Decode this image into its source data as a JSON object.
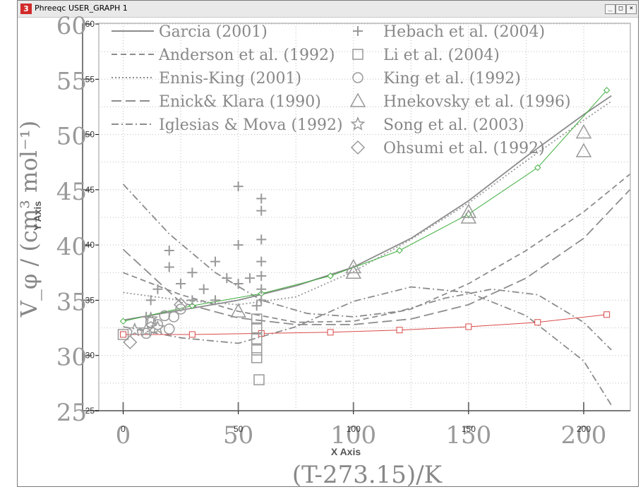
{
  "window": {
    "title": "Phreeqc USER_GRAPH 1",
    "icon_label": "3",
    "buttons": {
      "minimize": "_",
      "maximize": "□",
      "close": "×"
    }
  },
  "chart_data": {
    "type": "line",
    "grid": true,
    "legend_placement": "top-left",
    "title": "",
    "xlabel": "(T-273.15)/K",
    "ylabel": "V_φ / (cm³ mol⁻¹)",
    "widget_xlabel": "X Axis",
    "widget_ylabel": "Y Axis",
    "xlim": [
      -10,
      220
    ],
    "ylim": [
      25,
      60
    ],
    "x_ticks": [
      0,
      50,
      100,
      150,
      200
    ],
    "y_ticks": [
      25,
      30,
      35,
      40,
      45,
      50,
      55,
      60
    ],
    "x_tick_labels": [
      "0",
      "50",
      "100",
      "150",
      "200"
    ],
    "y_tick_labels": [
      "25",
      "30",
      "35",
      "40",
      "45",
      "50",
      "55",
      "60"
    ],
    "legend_lines": [
      {
        "label": "Garcia (2001)",
        "style": "solid"
      },
      {
        "label": "Anderson et al. (1992)",
        "style": "dashed"
      },
      {
        "label": "Ennis-King (2001)",
        "style": "dotted"
      },
      {
        "label": "Enick& Klara (1990)",
        "style": "long-dash"
      },
      {
        "label": "Iglesias & Mova (1992)",
        "style": "dash-dot"
      }
    ],
    "legend_markers": [
      {
        "label": "Hebach et al. (2004)",
        "marker": "+"
      },
      {
        "label": "Li et al. (2004)",
        "marker": "□"
      },
      {
        "label": "King et al. (1992)",
        "marker": "○"
      },
      {
        "label": "Hnekovsky et al. (1996)",
        "marker": "△"
      },
      {
        "label": "Song et al. (2003)",
        "marker": "☆"
      },
      {
        "label": "Ohsumi et al. (1992)",
        "marker": "◇"
      }
    ],
    "series": [
      {
        "name": "Garcia (2001)",
        "style": "solid",
        "color": "#8c8c8c",
        "x": [
          0,
          25,
          50,
          75,
          100,
          125,
          150,
          175,
          200,
          212
        ],
        "y": [
          33.2,
          34.1,
          35.0,
          36.3,
          38.0,
          40.6,
          44.0,
          48.0,
          51.8,
          53.5
        ]
      },
      {
        "name": "Anderson et al. (1992)",
        "style": "dashed",
        "color": "#8c8c8c",
        "x": [
          0,
          25,
          50,
          75,
          100,
          125,
          150,
          175,
          200,
          220
        ],
        "y": [
          37.5,
          35.5,
          34.0,
          33.0,
          33.1,
          34.2,
          36.5,
          39.5,
          43.0,
          46.4
        ]
      },
      {
        "name": "Ennis-King (2001)",
        "style": "dotted",
        "color": "#9a9a9a",
        "x": [
          0,
          25,
          50,
          75,
          100,
          125,
          150,
          175,
          200,
          212
        ],
        "y": [
          35.7,
          35.0,
          34.6,
          35.3,
          37.6,
          40.5,
          43.8,
          47.6,
          51.3,
          53.0
        ]
      },
      {
        "name": "Enick& Klara (1990)",
        "style": "long-dash",
        "color": "#8c8c8c",
        "x": [
          0,
          25,
          50,
          75,
          100,
          125,
          150,
          175,
          200,
          220
        ],
        "y": [
          39.6,
          34.8,
          33.4,
          32.8,
          32.8,
          33.3,
          34.6,
          37.0,
          40.6,
          45.0
        ]
      },
      {
        "name": "Iglesias & Mova (1992)",
        "style": "dash-dot",
        "color": "#8c8c8c",
        "x": [
          0,
          20,
          40,
          60,
          80,
          100,
          120,
          140,
          160,
          180,
          200,
          212
        ],
        "y": [
          45.5,
          41.0,
          37.5,
          35.0,
          33.8,
          33.5,
          34.0,
          35.2,
          36.0,
          35.5,
          33.0,
          30.5
        ]
      },
      {
        "name": "",
        "style": "dash-dot",
        "color": "#8c8c8c",
        "x": [
          0,
          25,
          50,
          75,
          100,
          125,
          150,
          175,
          200,
          212
        ],
        "y": [
          32.6,
          31.6,
          31.1,
          32.6,
          34.9,
          36.2,
          35.7,
          33.6,
          29.5,
          25.5
        ]
      },
      {
        "name": "",
        "style": "solid-markers",
        "color": "#3fae3f",
        "marker": "diamond",
        "x": [
          0,
          30,
          60,
          90,
          120,
          150,
          180,
          210
        ],
        "y": [
          33.1,
          34.5,
          35.6,
          37.2,
          39.5,
          42.8,
          47.0,
          54.0
        ]
      },
      {
        "name": "",
        "style": "solid-markers",
        "color": "#d94a4a",
        "marker": "square",
        "x": [
          0,
          30,
          60,
          90,
          120,
          150,
          180,
          210
        ],
        "y": [
          31.9,
          31.9,
          32.0,
          32.1,
          32.3,
          32.6,
          33.0,
          33.7
        ]
      }
    ],
    "points": {
      "hebach": [
        [
          10,
          33.5
        ],
        [
          12,
          35
        ],
        [
          15,
          36
        ],
        [
          20,
          38
        ],
        [
          20,
          39.5
        ],
        [
          25,
          36.5
        ],
        [
          30,
          37.5
        ],
        [
          30,
          35
        ],
        [
          35,
          36
        ],
        [
          40,
          38.5
        ],
        [
          40,
          35
        ],
        [
          45,
          37
        ],
        [
          50,
          45.3
        ],
        [
          50,
          40
        ],
        [
          50,
          36.5
        ],
        [
          55,
          37
        ],
        [
          58,
          34.5
        ],
        [
          60,
          44.2
        ],
        [
          60,
          43.1
        ],
        [
          60,
          40.5
        ],
        [
          60,
          38.5
        ],
        [
          60,
          37.2
        ],
        [
          60,
          36
        ],
        [
          60,
          35
        ]
      ],
      "li": [
        [
          0,
          31.9
        ],
        [
          58,
          33.3
        ],
        [
          58,
          32.5
        ],
        [
          58,
          31.5
        ],
        [
          58,
          30.5
        ],
        [
          58,
          29.8
        ],
        [
          59,
          27.8
        ]
      ],
      "king": [
        [
          10,
          32
        ],
        [
          12,
          33
        ],
        [
          15,
          32.8
        ],
        [
          18,
          33.6
        ],
        [
          20,
          32.4
        ],
        [
          22,
          33.5
        ],
        [
          25,
          34.2
        ]
      ],
      "hnekovsky": [
        [
          50,
          34
        ],
        [
          100,
          38
        ],
        [
          100,
          37.5
        ],
        [
          150,
          43
        ],
        [
          150,
          42.5
        ],
        [
          200,
          50.2
        ],
        [
          200,
          48.5
        ]
      ],
      "song": [
        [
          5,
          32.3
        ],
        [
          10,
          32.3
        ],
        [
          12,
          33.3
        ],
        [
          15,
          32.5
        ]
      ],
      "ohsumi": [
        [
          3,
          31.2
        ],
        [
          25,
          34.6
        ]
      ]
    }
  }
}
